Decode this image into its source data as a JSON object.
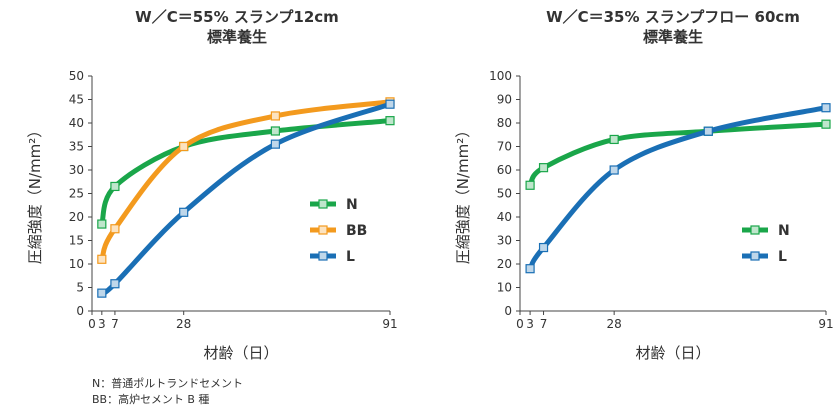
{
  "chart_data": [
    {
      "type": "line",
      "title": "W／C＝55% スランプ12cm",
      "subtitle": "標準養生",
      "xlabel": "材齢（日）",
      "ylabel": "圧縮強度（N/mm²）",
      "xlim": [
        0,
        91
      ],
      "ylim": [
        0,
        50
      ],
      "x_ticks": [
        "0",
        "3",
        "7",
        "28",
        "91"
      ],
      "y_ticks": [
        "0",
        "5",
        "10",
        "15",
        "20",
        "25",
        "30",
        "35",
        "40",
        "45",
        "50"
      ],
      "legend_position": "right",
      "series": [
        {
          "name": "N",
          "color": "#1aa64a",
          "x": [
            3,
            7,
            28,
            56,
            91
          ],
          "y": [
            18.5,
            26.5,
            35.0,
            38.3,
            40.5
          ]
        },
        {
          "name": "BB",
          "color": "#f39a1e",
          "x": [
            3,
            7,
            28,
            56,
            91
          ],
          "y": [
            11.0,
            17.5,
            35.0,
            41.5,
            44.5
          ]
        },
        {
          "name": "L",
          "color": "#1a6fb5",
          "x": [
            3,
            7,
            28,
            56,
            91
          ],
          "y": [
            3.8,
            5.8,
            21.0,
            35.5,
            44.0
          ]
        }
      ]
    },
    {
      "type": "line",
      "title": "W／C＝35% スランプフロー 60cm",
      "subtitle": "標準養生",
      "xlabel": "材齢（日）",
      "ylabel": "圧縮強度（N/mm²）",
      "xlim": [
        0,
        91
      ],
      "ylim": [
        0,
        100
      ],
      "x_ticks": [
        "0",
        "3",
        "7",
        "28",
        "91"
      ],
      "y_ticks": [
        "0",
        "10",
        "20",
        "30",
        "40",
        "50",
        "60",
        "70",
        "80",
        "90",
        "100"
      ],
      "legend_position": "right",
      "series": [
        {
          "name": "N",
          "color": "#1aa64a",
          "x": [
            3,
            7,
            28,
            56,
            91
          ],
          "y": [
            53.5,
            61.0,
            73.0,
            76.5,
            79.5
          ]
        },
        {
          "name": "L",
          "color": "#1a6fb5",
          "x": [
            3,
            7,
            28,
            56,
            91
          ],
          "y": [
            18.0,
            27.0,
            60.0,
            76.5,
            86.5
          ]
        }
      ]
    }
  ],
  "notes": [
    "N：普通ポルトランドセメント",
    "BB：高炉セメント B 種"
  ]
}
